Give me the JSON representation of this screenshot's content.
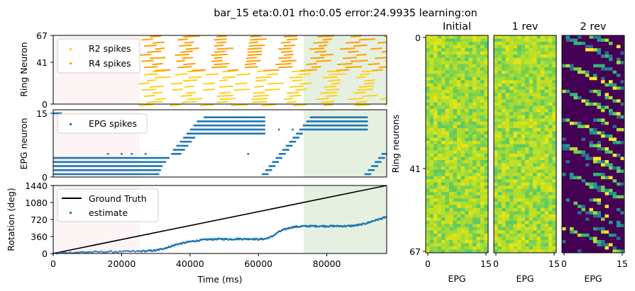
{
  "title": "bar_15 eta:0.01 rho:0.05 error:24.9935 learning:on",
  "colors": {
    "r2": "#ffd11a",
    "r4": "#ff9f00",
    "epg": "#1f77b4",
    "truth": "#000000",
    "learning_shade": "#e6f0e1",
    "early_shade": "#fdf5f5",
    "viridis_low": "#440154",
    "viridis_high": "#fde725"
  },
  "chart_data": [
    {
      "type": "scatter",
      "name": "ring-raster",
      "ylabel": "Ring Neuron",
      "ylim": [
        0,
        67
      ],
      "yticks": [
        "0",
        "41",
        "67"
      ],
      "xlim": [
        0,
        97500
      ],
      "shaded_regions": [
        {
          "x": [
            0,
            25000
          ],
          "color": "early"
        },
        {
          "x": [
            73000,
            97500
          ],
          "color": "learning"
        }
      ],
      "legend": [
        "R2 spikes",
        "R4 spikes"
      ],
      "series": [
        {
          "name": "R2 spikes",
          "color": "r2",
          "neuron_range": [
            0,
            33
          ],
          "active_from": 25000
        },
        {
          "name": "R4 spikes",
          "color": "r4",
          "neuron_range": [
            34,
            67
          ],
          "active_from": 25000
        }
      ]
    },
    {
      "type": "scatter",
      "name": "epg-raster",
      "ylabel": "EPG neuron",
      "ylim": [
        0,
        15
      ],
      "yticks": [
        "0",
        "15"
      ],
      "xlim": [
        0,
        97500
      ],
      "legend": [
        "EPG spikes"
      ],
      "series": [
        {
          "name": "EPG spikes",
          "color": "epg",
          "segments": [
            {
              "neuron": 0,
              "x": [
                0,
                31000
              ]
            },
            {
              "neuron": 1,
              "x": [
                0,
                31500
              ]
            },
            {
              "neuron": 2,
              "x": [
                0,
                32000
              ]
            },
            {
              "neuron": 3,
              "x": [
                0,
                33000
              ]
            },
            {
              "neuron": 4,
              "x": [
                0,
                34000
              ]
            },
            {
              "neuron": 5,
              "x": [
                34500,
                37500
              ]
            },
            {
              "neuron": 6,
              "x": [
                35000,
                38500
              ]
            },
            {
              "neuron": 7,
              "x": [
                36000,
                39500
              ]
            },
            {
              "neuron": 8,
              "x": [
                37000,
                40500
              ]
            },
            {
              "neuron": 9,
              "x": [
                38000,
                41500
              ]
            },
            {
              "neuron": 10,
              "x": [
                39000,
                62000
              ]
            },
            {
              "neuron": 11,
              "x": [
                40000,
                62000
              ]
            },
            {
              "neuron": 12,
              "x": [
                41000,
                62000
              ]
            },
            {
              "neuron": 13,
              "x": [
                42000,
                62000
              ]
            },
            {
              "neuron": 14,
              "x": [
                44000,
                62000
              ]
            },
            {
              "neuron": 0,
              "x": [
                61000,
                63000
              ]
            },
            {
              "neuron": 1,
              "x": [
                62000,
                64000
              ]
            },
            {
              "neuron": 2,
              "x": [
                63000,
                65000
              ]
            },
            {
              "neuron": 3,
              "x": [
                64000,
                66000
              ]
            },
            {
              "neuron": 4,
              "x": [
                65000,
                67000
              ]
            },
            {
              "neuron": 5,
              "x": [
                66000,
                68000
              ]
            },
            {
              "neuron": 6,
              "x": [
                67000,
                69000
              ]
            },
            {
              "neuron": 7,
              "x": [
                68000,
                70000
              ]
            },
            {
              "neuron": 8,
              "x": [
                69000,
                71000
              ]
            },
            {
              "neuron": 9,
              "x": [
                70000,
                72000
              ]
            },
            {
              "neuron": 10,
              "x": [
                71000,
                73000
              ]
            },
            {
              "neuron": 11,
              "x": [
                72000,
                92000
              ]
            },
            {
              "neuron": 12,
              "x": [
                73000,
                92000
              ]
            },
            {
              "neuron": 13,
              "x": [
                74000,
                92000
              ]
            },
            {
              "neuron": 14,
              "x": [
                75000,
                92000
              ]
            },
            {
              "neuron": 0,
              "x": [
                91000,
                93000
              ]
            },
            {
              "neuron": 1,
              "x": [
                92000,
                94000
              ]
            },
            {
              "neuron": 2,
              "x": [
                93000,
                95000
              ]
            },
            {
              "neuron": 3,
              "x": [
                94000,
                96000
              ]
            },
            {
              "neuron": 4,
              "x": [
                95000,
                97000
              ]
            },
            {
              "neuron": 5,
              "x": [
                96000,
                97500
              ]
            },
            {
              "neuron": 15,
              "x": [
                0,
                2500
              ]
            }
          ],
          "isolated_points": [
            {
              "x": 16000,
              "y": 5
            },
            {
              "x": 20000,
              "y": 5
            },
            {
              "x": 23000,
              "y": 5
            },
            {
              "x": 27000,
              "y": 5
            },
            {
              "x": 53000,
              "y": 11
            },
            {
              "x": 57000,
              "y": 5
            },
            {
              "x": 66000,
              "y": 11
            },
            {
              "x": 70000,
              "y": 11
            }
          ]
        }
      ]
    },
    {
      "type": "line",
      "name": "rotation",
      "xlabel": "Time (ms)",
      "ylabel": "Rotation (deg)",
      "xlim": [
        0,
        97500
      ],
      "ylim": [
        0,
        1440
      ],
      "xticks": [
        0,
        20000,
        40000,
        60000,
        80000
      ],
      "yticks": [
        0,
        360,
        720,
        1080,
        1440
      ],
      "legend": [
        "Ground Truth",
        "estimate"
      ],
      "series": [
        {
          "name": "Ground Truth",
          "color": "truth",
          "x": [
            0,
            97500
          ],
          "y": [
            0,
            1440
          ]
        },
        {
          "name": "estimate",
          "color": "epg",
          "x": [
            0,
            5000,
            10000,
            15000,
            20000,
            25000,
            28000,
            30000,
            32000,
            34000,
            36000,
            38000,
            40000,
            42000,
            44000,
            46000,
            48000,
            50000,
            52000,
            54000,
            56000,
            58000,
            60000,
            62000,
            64000,
            66000,
            68000,
            70000,
            72000,
            74000,
            76000,
            78000,
            80000,
            82000,
            84000,
            86000,
            88000,
            90000,
            92000,
            94000,
            96000,
            97500
          ],
          "y": [
            0,
            20,
            30,
            35,
            40,
            45,
            55,
            65,
            100,
            140,
            190,
            220,
            250,
            270,
            290,
            300,
            305,
            305,
            300,
            310,
            305,
            310,
            300,
            310,
            360,
            460,
            520,
            560,
            570,
            580,
            580,
            580,
            580,
            580,
            580,
            580,
            590,
            610,
            650,
            700,
            740,
            780
          ]
        }
      ]
    },
    {
      "type": "heatmap",
      "name": "weights-initial",
      "title": "Initial",
      "xlabel": "EPG",
      "ylabel": "Ring neurons",
      "xticks": [
        "0",
        "15"
      ],
      "yticks": [
        "0",
        "41",
        "67"
      ],
      "rows": 68,
      "cols": 16,
      "pattern": "uniform-random-high"
    },
    {
      "type": "heatmap",
      "name": "weights-1rev",
      "title": "1 rev",
      "xlabel": "EPG",
      "xticks": [
        "0",
        "15"
      ],
      "rows": 68,
      "cols": 16,
      "pattern": "uniform-random-high"
    },
    {
      "type": "heatmap",
      "name": "weights-2rev",
      "title": "2 rev",
      "xlabel": "EPG",
      "xticks": [
        "0",
        "15"
      ],
      "rows": 68,
      "cols": 16,
      "pattern": "sparse-diagonal-bands"
    }
  ]
}
